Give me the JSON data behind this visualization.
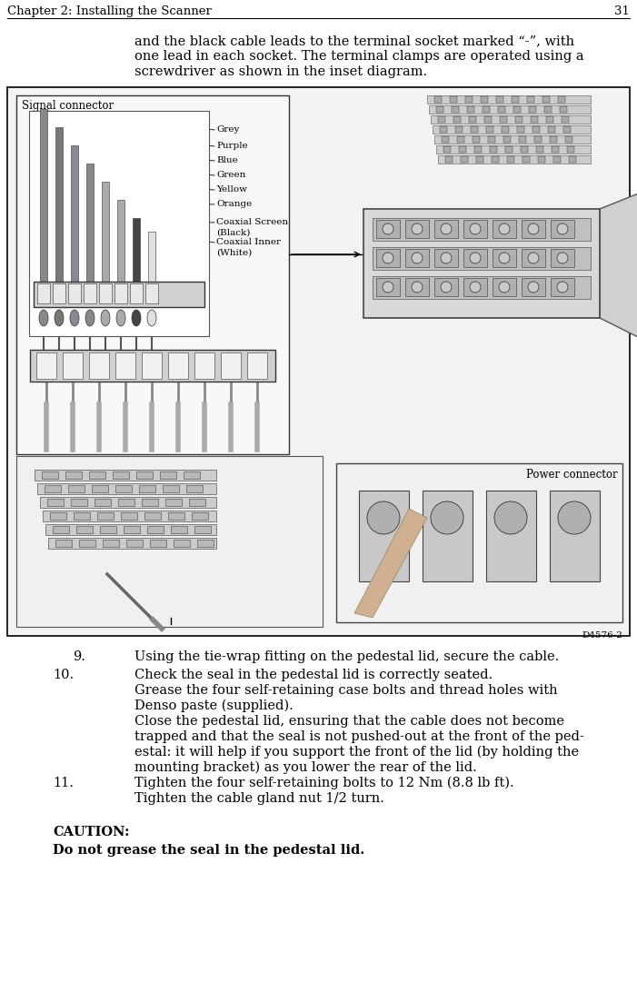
{
  "page_width": 7.01,
  "page_height": 11.03,
  "dpi": 100,
  "bg_color": "#ffffff",
  "header_text": "Chapter 2: Installing the Scanner",
  "header_page": "31",
  "header_font_size": 9.5,
  "body_font_size": 10.0,
  "intro_text_lines": [
    "and the black cable leads to the terminal socket marked “-”, with",
    "one lead in each socket. The terminal clamps are operated using a",
    "screwdriver as shown in the inset diagram."
  ],
  "steps": [
    {
      "num": "9.",
      "indent": true,
      "text_lines": [
        "Using the tie-wrap fitting on the pedestal lid, secure the cable."
      ]
    },
    {
      "num": "10.",
      "indent": false,
      "text_lines": [
        "Check the seal in the pedestal lid is correctly seated.",
        "Grease the four self-retaining case bolts and thread holes with",
        "Denso paste (supplied).",
        "Close the pedestal lid, ensuring that the cable does not become",
        "trapped and that the seal is not pushed-out at the front of the ped-",
        "estal: it will help if you support the front of the lid (by holding the",
        "mounting bracket) as you lower the rear of the lid."
      ]
    },
    {
      "num": "11.",
      "indent": false,
      "text_lines": [
        "Tighten the four self-retaining bolts to 12 Nm (8.8 lb ft).",
        "Tighten the cable gland nut 1/2 turn."
      ]
    }
  ],
  "caution_label": "CAUTION:",
  "caution_text": "Do not grease the seal in the pedestal lid.",
  "signal_connector_label": "Signal connector",
  "power_connector_label": "Power connector",
  "wire_labels": [
    "Grey",
    "Purple",
    "Blue",
    "Green",
    "Yellow",
    "Orange",
    "Coaxial Screen\n(Black)",
    "Coaxial Inner\n(White)"
  ],
  "drawing_id": "D4576-2",
  "wire_colors_draw": [
    "#888888",
    "#666666",
    "#888898",
    "#888888",
    "#aaaaaa",
    "#aaaaaa",
    "#555555",
    "#dddddd"
  ],
  "text_color": "#000000",
  "header_line_color": "#000000"
}
